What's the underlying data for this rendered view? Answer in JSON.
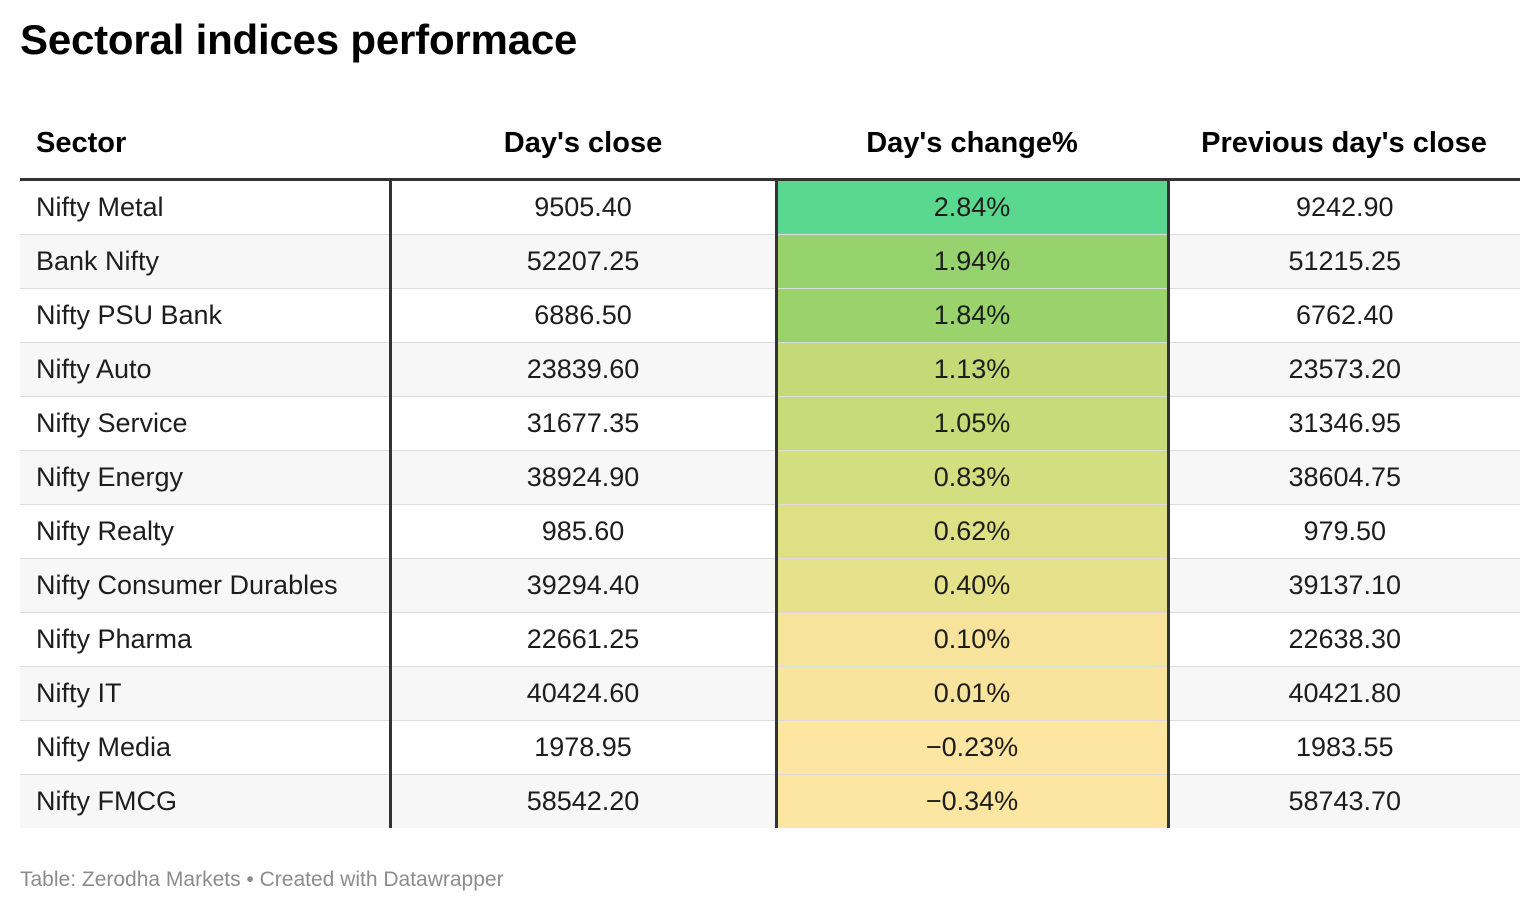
{
  "title": "Sectoral indices performace",
  "footer": "Table: Zerodha Markets • Created with Datawrapper",
  "chart_data": {
    "type": "table",
    "columns": [
      "Sector",
      "Day's close",
      "Day's change%",
      "Previous day's close"
    ],
    "rows": [
      {
        "sector": "Nifty Metal",
        "close": "9505.40",
        "change": "2.84%",
        "prev": "9242.90",
        "change_value": 2.84,
        "color": "#5ad88f"
      },
      {
        "sector": "Bank Nifty",
        "close": "52207.25",
        "change": "1.94%",
        "prev": "51215.25",
        "change_value": 1.94,
        "color": "#96d26e"
      },
      {
        "sector": "Nifty PSU Bank",
        "close": "6886.50",
        "change": "1.84%",
        "prev": "6762.40",
        "change_value": 1.84,
        "color": "#9ad36c"
      },
      {
        "sector": "Nifty Auto",
        "close": "23839.60",
        "change": "1.13%",
        "prev": "23573.20",
        "change_value": 1.13,
        "color": "#c5da77"
      },
      {
        "sector": "Nifty Service",
        "close": "31677.35",
        "change": "1.05%",
        "prev": "31346.95",
        "change_value": 1.05,
        "color": "#c9db78"
      },
      {
        "sector": "Nifty Energy",
        "close": "38924.90",
        "change": "0.83%",
        "prev": "38604.75",
        "change_value": 0.83,
        "color": "#d3de80"
      },
      {
        "sector": "Nifty Realty",
        "close": "985.60",
        "change": "0.62%",
        "prev": "979.50",
        "change_value": 0.62,
        "color": "#dde085"
      },
      {
        "sector": "Nifty Consumer Durables",
        "close": "39294.40",
        "change": "0.40%",
        "prev": "39137.10",
        "change_value": 0.4,
        "color": "#e6e28c"
      },
      {
        "sector": "Nifty Pharma",
        "close": "22661.25",
        "change": "0.10%",
        "prev": "22638.30",
        "change_value": 0.1,
        "color": "#f7e39c"
      },
      {
        "sector": "Nifty IT",
        "close": "40424.60",
        "change": "0.01%",
        "prev": "40421.80",
        "change_value": 0.01,
        "color": "#f9e49e"
      },
      {
        "sector": "Nifty Media",
        "close": "1978.95",
        "change": "−0.23%",
        "prev": "1983.55",
        "change_value": -0.23,
        "color": "#fde6a1"
      },
      {
        "sector": "Nifty FMCG",
        "close": "58542.20",
        "change": "−0.34%",
        "prev": "58743.70",
        "change_value": -0.34,
        "color": "#fde6a1"
      }
    ]
  }
}
